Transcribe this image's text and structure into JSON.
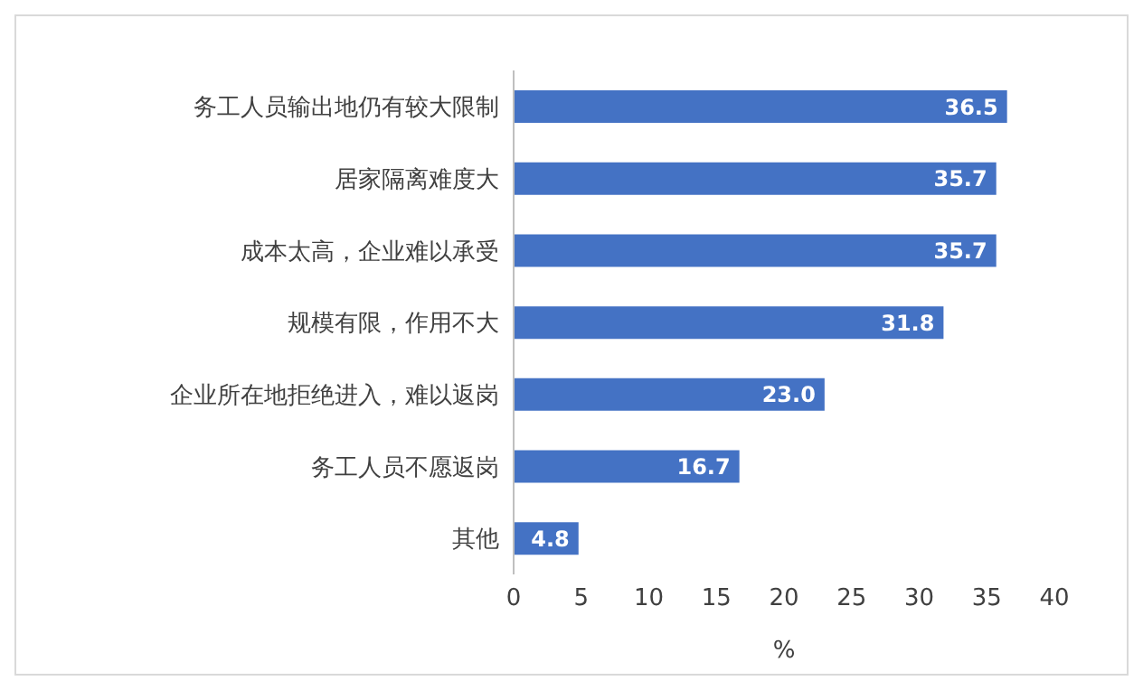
{
  "chart_data": {
    "type": "bar",
    "orientation": "horizontal",
    "categories": [
      "务工人员输出地仍有较大限制",
      "居家隔离难度大",
      "成本太高，企业难以承受",
      "规模有限，作用不大",
      "企业所在地拒绝进入，难以返岗",
      "务工人员不愿返岗",
      "其他"
    ],
    "values": [
      36.5,
      35.7,
      35.7,
      31.8,
      23.0,
      16.7,
      4.8
    ],
    "value_labels": [
      "36.5",
      "35.7",
      "35.7",
      "31.8",
      "23.0",
      "16.7",
      "4.8"
    ],
    "color": "#4472c4",
    "xlim": [
      0,
      40
    ],
    "xticks": [
      0,
      5,
      10,
      15,
      20,
      25,
      30,
      35,
      40
    ],
    "xlabel": "%",
    "grid": false
  }
}
